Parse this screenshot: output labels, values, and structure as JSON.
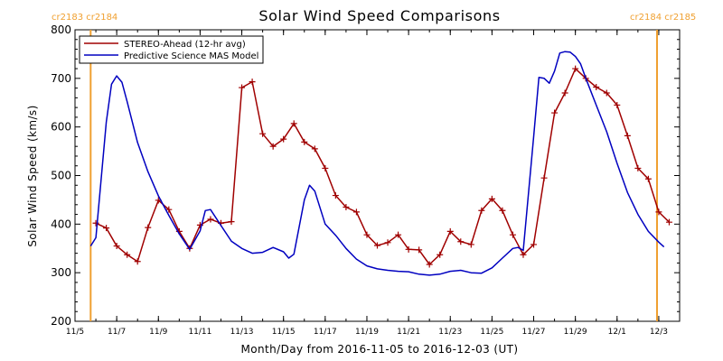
{
  "chart_data": {
    "type": "line",
    "title": "Solar Wind Speed Comparisons",
    "xlabel": "Month/Day from 2016-11-05 to 2016-12-03 (UT)",
    "ylabel": "Solar Wind Speed (km/s)",
    "xlim": [
      "2016-11-05",
      "2016-12-03"
    ],
    "ylim": [
      200,
      800
    ],
    "yticks": [
      200,
      300,
      400,
      500,
      600,
      700,
      800
    ],
    "xtick_labels": [
      {
        "date": "2016-11-05",
        "label": "11/5"
      },
      {
        "date": "2016-11-07",
        "label": "11/7"
      },
      {
        "date": "2016-11-09",
        "label": "11/9"
      },
      {
        "date": "2016-11-11",
        "label": "11/11"
      },
      {
        "date": "2016-11-13",
        "label": "11/13"
      },
      {
        "date": "2016-11-15",
        "label": "11/15"
      },
      {
        "date": "2016-11-17",
        "label": "11/17"
      },
      {
        "date": "2016-11-19",
        "label": "11/19"
      },
      {
        "date": "2016-11-21",
        "label": "11/21"
      },
      {
        "date": "2016-11-23",
        "label": "11/23"
      },
      {
        "date": "2016-11-25",
        "label": "11/25"
      },
      {
        "date": "2016-11-27",
        "label": "11/27"
      },
      {
        "date": "2016-11-29",
        "label": "11/29"
      },
      {
        "date": "2016-12-01",
        "label": "12/1"
      },
      {
        "date": "2016-12-03",
        "label": "12/3"
      }
    ],
    "legend_position": "top-left",
    "carrington_markers": [
      {
        "date": "2016-11-05 18:00",
        "label": "cr2183 cr2184",
        "side": "left"
      },
      {
        "date": "2016-12-02 22:00",
        "label": "cr2184 cr2185",
        "side": "right"
      }
    ],
    "series": [
      {
        "name": "STEREO-Ahead (12-hr avg)",
        "color": "#a00000",
        "marker": "plus",
        "points": [
          [
            "2016-11-06 00:00",
            402
          ],
          [
            "2016-11-06 12:00",
            392
          ],
          [
            "2016-11-07 00:00",
            355
          ],
          [
            "2016-11-07 12:00",
            337
          ],
          [
            "2016-11-08 00:00",
            323
          ],
          [
            "2016-11-08 12:00",
            393
          ],
          [
            "2016-11-09 00:00",
            449
          ],
          [
            "2016-11-09 12:00",
            430
          ],
          [
            "2016-11-10 00:00",
            385
          ],
          [
            "2016-11-10 12:00",
            350
          ],
          [
            "2016-11-11 00:00",
            398
          ],
          [
            "2016-11-11 12:00",
            410
          ],
          [
            "2016-11-12 00:00",
            402
          ],
          [
            "2016-11-12 12:00",
            405
          ],
          [
            "2016-11-13 00:00",
            681
          ],
          [
            "2016-11-13 12:00",
            693
          ],
          [
            "2016-11-14 00:00",
            586
          ],
          [
            "2016-11-14 12:00",
            560
          ],
          [
            "2016-11-15 00:00",
            575
          ],
          [
            "2016-11-15 12:00",
            607
          ],
          [
            "2016-11-16 00:00",
            569
          ],
          [
            "2016-11-16 12:00",
            555
          ],
          [
            "2016-11-17 00:00",
            515
          ],
          [
            "2016-11-17 12:00",
            459
          ],
          [
            "2016-11-18 00:00",
            435
          ],
          [
            "2016-11-18 12:00",
            425
          ],
          [
            "2016-11-19 00:00",
            378
          ],
          [
            "2016-11-19 12:00",
            356
          ],
          [
            "2016-11-20 00:00",
            362
          ],
          [
            "2016-11-20 12:00",
            378
          ],
          [
            "2016-11-21 00:00",
            348
          ],
          [
            "2016-11-21 12:00",
            347
          ],
          [
            "2016-11-22 00:00",
            317
          ],
          [
            "2016-11-22 12:00",
            337
          ],
          [
            "2016-11-23 00:00",
            385
          ],
          [
            "2016-11-23 12:00",
            364
          ],
          [
            "2016-11-24 00:00",
            358
          ],
          [
            "2016-11-24 12:00",
            428
          ],
          [
            "2016-11-25 00:00",
            452
          ],
          [
            "2016-11-25 12:00",
            428
          ],
          [
            "2016-11-26 00:00",
            378
          ],
          [
            "2016-11-26 12:00",
            337
          ],
          [
            "2016-11-27 00:00",
            358
          ],
          [
            "2016-11-27 12:00",
            495
          ],
          [
            "2016-11-28 00:00",
            629
          ],
          [
            "2016-11-28 12:00",
            670
          ],
          [
            "2016-11-29 00:00",
            720
          ],
          [
            "2016-11-29 12:00",
            700
          ],
          [
            "2016-11-30 00:00",
            682
          ],
          [
            "2016-11-30 12:00",
            670
          ],
          [
            "2016-12-01 00:00",
            645
          ],
          [
            "2016-12-01 12:00",
            582
          ],
          [
            "2016-12-02 00:00",
            515
          ],
          [
            "2016-12-02 12:00",
            493
          ],
          [
            "2016-12-03 00:00",
            425
          ],
          [
            "2016-12-03 12:00",
            404
          ]
        ]
      },
      {
        "name": "Predictive Science MAS Model",
        "color": "#0000c0",
        "marker": "none",
        "points": [
          [
            "2016-11-05 18:00",
            355
          ],
          [
            "2016-11-06 00:00",
            372
          ],
          [
            "2016-11-06 12:00",
            610
          ],
          [
            "2016-11-06 18:00",
            688
          ],
          [
            "2016-11-07 00:00",
            705
          ],
          [
            "2016-11-07 06:00",
            692
          ],
          [
            "2016-11-07 12:00",
            652
          ],
          [
            "2016-11-08 00:00",
            568
          ],
          [
            "2016-11-08 12:00",
            508
          ],
          [
            "2016-11-09 00:00",
            458
          ],
          [
            "2016-11-09 12:00",
            418
          ],
          [
            "2016-11-10 00:00",
            380
          ],
          [
            "2016-11-10 12:00",
            348
          ],
          [
            "2016-11-11 00:00",
            386
          ],
          [
            "2016-11-11 06:00",
            428
          ],
          [
            "2016-11-11 12:00",
            430
          ],
          [
            "2016-11-12 00:00",
            397
          ],
          [
            "2016-11-12 12:00",
            365
          ],
          [
            "2016-11-13 00:00",
            350
          ],
          [
            "2016-11-13 12:00",
            340
          ],
          [
            "2016-11-14 00:00",
            342
          ],
          [
            "2016-11-14 12:00",
            352
          ],
          [
            "2016-11-15 00:00",
            343
          ],
          [
            "2016-11-15 06:00",
            330
          ],
          [
            "2016-11-15 12:00",
            338
          ],
          [
            "2016-11-16 00:00",
            450
          ],
          [
            "2016-11-16 06:00",
            480
          ],
          [
            "2016-11-16 12:00",
            468
          ],
          [
            "2016-11-17 00:00",
            400
          ],
          [
            "2016-11-17 12:00",
            377
          ],
          [
            "2016-11-18 00:00",
            350
          ],
          [
            "2016-11-18 12:00",
            328
          ],
          [
            "2016-11-19 00:00",
            314
          ],
          [
            "2016-11-19 12:00",
            308
          ],
          [
            "2016-11-20 00:00",
            305
          ],
          [
            "2016-11-20 12:00",
            303
          ],
          [
            "2016-11-21 00:00",
            302
          ],
          [
            "2016-11-21 12:00",
            297
          ],
          [
            "2016-11-22 00:00",
            295
          ],
          [
            "2016-11-22 12:00",
            297
          ],
          [
            "2016-11-23 00:00",
            303
          ],
          [
            "2016-11-23 12:00",
            305
          ],
          [
            "2016-11-24 00:00",
            300
          ],
          [
            "2016-11-24 12:00",
            299
          ],
          [
            "2016-11-25 00:00",
            310
          ],
          [
            "2016-11-25 12:00",
            330
          ],
          [
            "2016-11-26 00:00",
            350
          ],
          [
            "2016-11-26 06:00",
            352
          ],
          [
            "2016-11-26 12:00",
            346
          ],
          [
            "2016-11-27 00:00",
            580
          ],
          [
            "2016-11-27 06:00",
            702
          ],
          [
            "2016-11-27 12:00",
            700
          ],
          [
            "2016-11-27 18:00",
            690
          ],
          [
            "2016-11-28 00:00",
            715
          ],
          [
            "2016-11-28 06:00",
            752
          ],
          [
            "2016-11-28 12:00",
            755
          ],
          [
            "2016-11-28 18:00",
            754
          ],
          [
            "2016-11-29 00:00",
            745
          ],
          [
            "2016-11-29 06:00",
            730
          ],
          [
            "2016-11-29 12:00",
            700
          ],
          [
            "2016-11-30 00:00",
            645
          ],
          [
            "2016-11-30 12:00",
            590
          ],
          [
            "2016-12-01 00:00",
            525
          ],
          [
            "2016-12-01 12:00",
            465
          ],
          [
            "2016-12-02 00:00",
            420
          ],
          [
            "2016-12-02 12:00",
            385
          ],
          [
            "2016-12-03 00:00",
            363
          ],
          [
            "2016-12-03 06:00",
            353
          ]
        ]
      }
    ]
  }
}
